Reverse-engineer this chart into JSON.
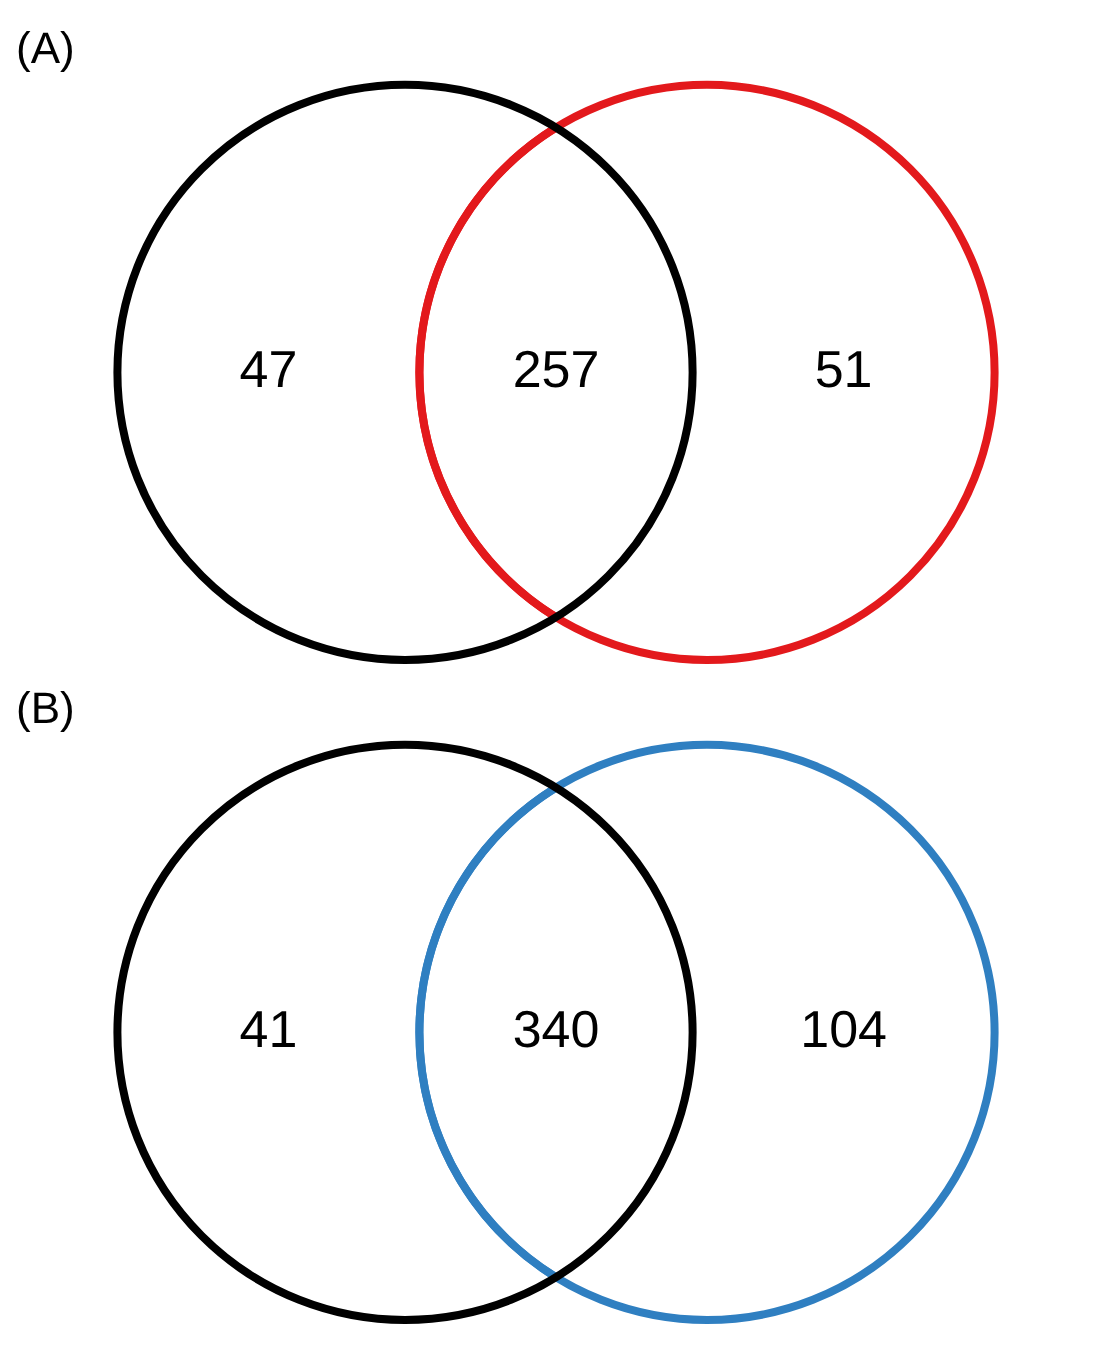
{
  "chart_data": [
    {
      "type": "other",
      "title": "(A)",
      "data_labels": true,
      "values": [
        47,
        257,
        51
      ],
      "colors": [
        "#000000",
        "#e3191c",
        "#e3191c"
      ]
    },
    {
      "type": "other",
      "title": "(B)",
      "data_labels": true,
      "values": [
        41,
        340,
        104
      ],
      "colors": [
        "#000000",
        "#2f7fc1",
        "#2f7fc1"
      ]
    }
  ]
}
